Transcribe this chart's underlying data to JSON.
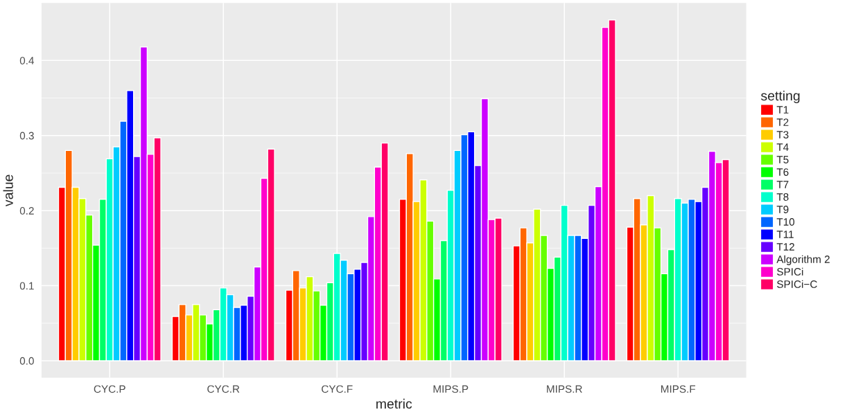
{
  "chart_data": {
    "type": "bar",
    "xlabel": "metric",
    "ylabel": "value",
    "legend_title": "setting",
    "legend": "right",
    "grid": true,
    "categories": [
      "CYC.P",
      "CYC.R",
      "CYC.F",
      "MIPS.P",
      "MIPS.R",
      "MIPS.F"
    ],
    "ylim": [
      -0.0227,
      0.4767
    ],
    "yticks": [
      {
        "value": 0,
        "label": "0.0"
      },
      0.1,
      0.2,
      0.3,
      0.4
    ],
    "series": [
      {
        "name": "T1",
        "color": "#ff0000",
        "values": [
          0.231,
          0.059,
          0.094,
          0.215,
          0.153,
          0.178
        ]
      },
      {
        "name": "T2",
        "color": "#ff6600",
        "values": [
          0.28,
          0.075,
          0.12,
          0.276,
          0.177,
          0.216
        ]
      },
      {
        "name": "T3",
        "color": "#ffcc00",
        "values": [
          0.231,
          0.061,
          0.097,
          0.212,
          0.157,
          0.181
        ]
      },
      {
        "name": "T4",
        "color": "#ccff00",
        "values": [
          0.216,
          0.075,
          0.112,
          0.241,
          0.202,
          0.22
        ]
      },
      {
        "name": "T5",
        "color": "#66ff00",
        "values": [
          0.194,
          0.061,
          0.093,
          0.186,
          0.167,
          0.177
        ]
      },
      {
        "name": "T6",
        "color": "#00ff00",
        "values": [
          0.154,
          0.049,
          0.074,
          0.109,
          0.123,
          0.116
        ]
      },
      {
        "name": "T7",
        "color": "#00ff66",
        "values": [
          0.215,
          0.068,
          0.104,
          0.16,
          0.138,
          0.148
        ]
      },
      {
        "name": "T8",
        "color": "#00ffcc",
        "values": [
          0.269,
          0.097,
          0.143,
          0.227,
          0.207,
          0.216
        ]
      },
      {
        "name": "T9",
        "color": "#00ccff",
        "values": [
          0.285,
          0.088,
          0.134,
          0.28,
          0.167,
          0.21
        ]
      },
      {
        "name": "T10",
        "color": "#0066ff",
        "values": [
          0.319,
          0.071,
          0.116,
          0.301,
          0.167,
          0.215
        ]
      },
      {
        "name": "T11",
        "color": "#0000ff",
        "values": [
          0.36,
          0.074,
          0.122,
          0.305,
          0.163,
          0.212
        ]
      },
      {
        "name": "T12",
        "color": "#6600ff",
        "values": [
          0.272,
          0.086,
          0.131,
          0.26,
          0.207,
          0.231
        ]
      },
      {
        "name": "Algorithm 2",
        "color": "#cc00ff",
        "values": [
          0.418,
          0.125,
          0.192,
          0.349,
          0.232,
          0.279
        ]
      },
      {
        "name": "SPICi",
        "color": "#ff00cc",
        "values": [
          0.275,
          0.243,
          0.258,
          0.188,
          0.444,
          0.264
        ]
      },
      {
        "name": "SPICi−C",
        "color": "#ff0066",
        "values": [
          0.297,
          0.282,
          0.29,
          0.19,
          0.454,
          0.268
        ]
      }
    ]
  }
}
